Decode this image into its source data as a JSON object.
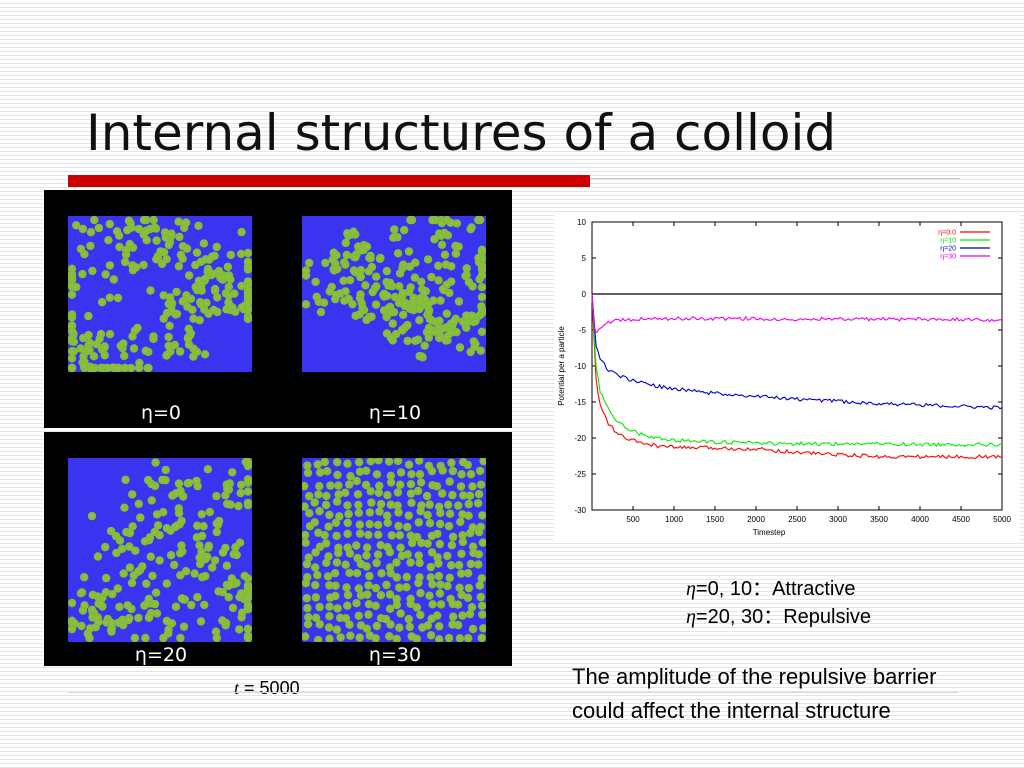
{
  "slide": {
    "title": "Internal structures of a colloid",
    "accent_color": "#cc0000",
    "panel_bg_color": "#3a34f0",
    "particle_color": "#7fc03a",
    "time_label_var": "t",
    "time_label_value": "= 5000",
    "panels": [
      {
        "eta_symbol": "η",
        "label_value": "=0",
        "pattern": "attractive-clusters"
      },
      {
        "eta_symbol": "η",
        "label_value": "=10",
        "pattern": "attractive-clusters"
      },
      {
        "eta_symbol": "η",
        "label_value": "=20",
        "pattern": "attractive-clusters-loose"
      },
      {
        "eta_symbol": "η",
        "label_value": "=30",
        "pattern": "repulsive-dispersed"
      }
    ],
    "legend_lines": [
      {
        "eta": "η",
        "text": "=0, 10：Attractive"
      },
      {
        "eta": "η",
        "text": "=20, 30：Repulsive"
      }
    ],
    "conclusion": "The amplitude of the repulsive barrier could affect the internal structure"
  },
  "chart_data": {
    "type": "line",
    "xlabel": "Timestep",
    "ylabel": "Potential per a particle",
    "xlim": [
      0,
      5000
    ],
    "ylim": [
      -30,
      10
    ],
    "x_ticks": [
      500,
      1000,
      1500,
      2000,
      2500,
      3000,
      3500,
      4000,
      4500,
      5000
    ],
    "y_ticks": [
      10,
      5,
      0,
      -5,
      -10,
      -15,
      -20,
      -25,
      -30
    ],
    "legend_position": "top-right",
    "series": [
      {
        "name": "η=0.0",
        "color": "#ff0000",
        "x": [
          0,
          50,
          100,
          200,
          300,
          400,
          600,
          800,
          1000,
          1500,
          2000,
          2500,
          3000,
          3500,
          4000,
          4500,
          5000
        ],
        "y": [
          0,
          -12,
          -15.5,
          -18,
          -19.3,
          -20,
          -20.7,
          -21.1,
          -21.3,
          -21.4,
          -21.5,
          -22,
          -22.3,
          -22.6,
          -22.6,
          -22.6,
          -22.6
        ]
      },
      {
        "name": "η=10",
        "color": "#00ee00",
        "x": [
          0,
          50,
          100,
          200,
          300,
          400,
          600,
          800,
          1000,
          1500,
          2000,
          2500,
          3000,
          3500,
          4000,
          4500,
          5000
        ],
        "y": [
          0,
          -10,
          -13.5,
          -16,
          -17.5,
          -18.5,
          -19.5,
          -20,
          -20.3,
          -20.6,
          -20.7,
          -20.8,
          -20.8,
          -20.8,
          -20.9,
          -20.9,
          -20.9
        ]
      },
      {
        "name": "η=20",
        "color": "#0000bb",
        "x": [
          0,
          50,
          100,
          200,
          300,
          500,
          800,
          1000,
          1500,
          2000,
          2500,
          3000,
          3500,
          4000,
          4500,
          5000
        ],
        "y": [
          0,
          -7,
          -9,
          -10.5,
          -11.3,
          -12,
          -12.8,
          -13.2,
          -13.8,
          -14.2,
          -14.6,
          -14.9,
          -15.2,
          -15.4,
          -15.6,
          -15.8
        ]
      },
      {
        "name": "η=30",
        "color": "#ee00ee",
        "x": [
          0,
          30,
          60,
          100,
          150,
          250,
          400,
          600,
          1000,
          1500,
          2000,
          2500,
          3000,
          3500,
          4000,
          4500,
          5000
        ],
        "y": [
          0,
          -5,
          -5.2,
          -4.8,
          -4.2,
          -3.8,
          -3.6,
          -3.5,
          -3.4,
          -3.4,
          -3.4,
          -3.5,
          -3.4,
          -3.5,
          -3.5,
          -3.5,
          -3.6
        ]
      }
    ]
  }
}
